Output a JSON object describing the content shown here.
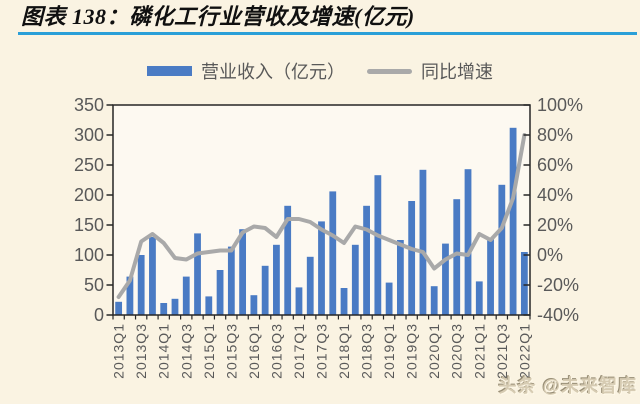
{
  "header": {
    "title": "图表 138：磷化工行业营收及增速(亿元)"
  },
  "legend": {
    "revenue": {
      "label": "营业收入（亿元）",
      "type": "bar",
      "color": "#4a7bc4"
    },
    "growth": {
      "label": "同比增速",
      "type": "line",
      "color": "#a9a9a9"
    }
  },
  "watermark": "头条 @未来智库",
  "colors": {
    "page_bg": "#faf3e2",
    "plot_bg": "#fdf9f1",
    "bar": "#4a7bc4",
    "line": "#a9a9a9",
    "title_rule": "#2a9fd8",
    "axis_text": "#595959",
    "axis_line": "#262626"
  },
  "chart_data": {
    "type": "bar",
    "title": "磷化工行业营收及增速(亿元)",
    "categories": [
      "2013Q1",
      "2013Q2",
      "2013Q3",
      "2013Q4",
      "2014Q1",
      "2014Q2",
      "2014Q3",
      "2014Q4",
      "2015Q1",
      "2015Q2",
      "2015Q3",
      "2015Q4",
      "2016Q1",
      "2016Q2",
      "2016Q3",
      "2016Q4",
      "2017Q1",
      "2017Q2",
      "2017Q3",
      "2017Q4",
      "2018Q1",
      "2018Q2",
      "2018Q3",
      "2018Q4",
      "2019Q1",
      "2019Q2",
      "2019Q3",
      "2019Q4",
      "2020Q1",
      "2020Q2",
      "2020Q3",
      "2020Q4",
      "2021Q1",
      "2021Q2",
      "2021Q3",
      "2021Q4",
      "2022Q1"
    ],
    "x_tick_labels": [
      "2013Q1",
      "2013Q3",
      "2014Q1",
      "2014Q3",
      "2015Q1",
      "2015Q3",
      "2016Q1",
      "2016Q3",
      "2017Q1",
      "2017Q3",
      "2018Q1",
      "2018Q3",
      "2019Q1",
      "2019Q3",
      "2020Q1",
      "2020Q3",
      "2021Q1",
      "2021Q3",
      "2022Q1"
    ],
    "series": [
      {
        "name": "营业收入（亿元）",
        "type": "bar",
        "axis": "left",
        "color": "#4a7bc4",
        "values": [
          22,
          64,
          100,
          130,
          20,
          27,
          64,
          136,
          31,
          75,
          114,
          143,
          33,
          82,
          117,
          182,
          46,
          97,
          156,
          206,
          45,
          117,
          182,
          233,
          54,
          125,
          190,
          242,
          48,
          119,
          193,
          243,
          56,
          128,
          217,
          312,
          105
        ]
      },
      {
        "name": "同比增速",
        "type": "line",
        "axis": "right",
        "unit": "%",
        "color": "#a9a9a9",
        "values": [
          -28,
          -17,
          9,
          14,
          8,
          -2,
          -3,
          1,
          2,
          3,
          3,
          15,
          19,
          18,
          12,
          24,
          24,
          22,
          17,
          13,
          8,
          19,
          17,
          13,
          10,
          7,
          4,
          2,
          -9,
          -3,
          1,
          0,
          14,
          10,
          18,
          38,
          80
        ]
      }
    ],
    "left_axis": {
      "range": [
        0,
        350
      ],
      "tick_values": [
        350,
        300,
        250,
        200,
        150,
        100,
        50,
        0
      ],
      "tick_labels": [
        "350",
        "300",
        "250",
        "200",
        "150",
        "100",
        "50",
        "0"
      ]
    },
    "right_axis": {
      "range": [
        -40,
        100
      ],
      "tick_values": [
        100,
        80,
        60,
        40,
        20,
        0,
        -20,
        -40
      ],
      "tick_labels": [
        "100%",
        "80%",
        "60%",
        "40%",
        "20%",
        "0%",
        "-20%",
        "-40%"
      ]
    },
    "grid": false,
    "legend_position": "top"
  }
}
